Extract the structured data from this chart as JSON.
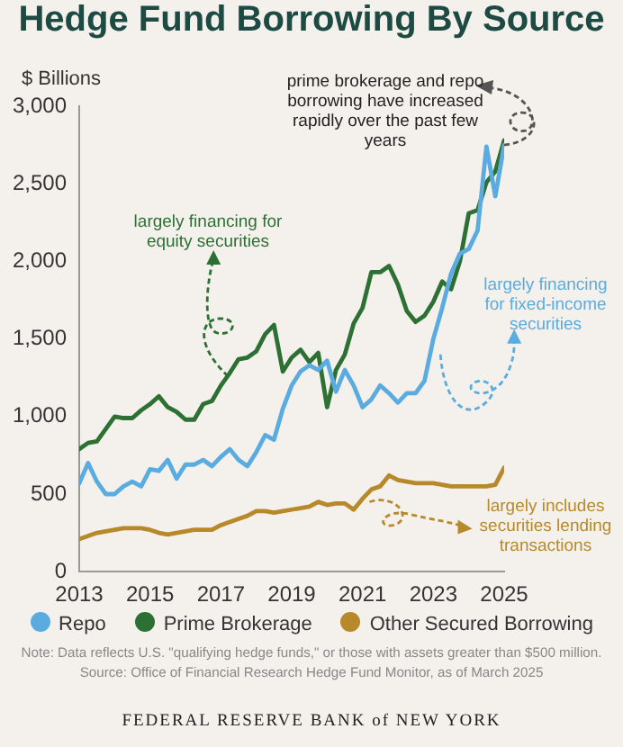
{
  "chart_data": {
    "type": "line",
    "title": "Hedge Fund Borrowing By Source",
    "ylabel": "$ Billions",
    "x": [
      2013,
      2013.25,
      2013.5,
      2013.75,
      2014,
      2014.25,
      2014.5,
      2014.75,
      2015,
      2015.25,
      2015.5,
      2015.75,
      2016,
      2016.25,
      2016.5,
      2016.75,
      2017,
      2017.25,
      2017.5,
      2017.75,
      2018,
      2018.25,
      2018.5,
      2018.75,
      2019,
      2019.25,
      2019.5,
      2019.75,
      2020,
      2020.25,
      2020.5,
      2020.75,
      2021,
      2021.25,
      2021.5,
      2021.75,
      2022,
      2022.25,
      2022.5,
      2022.75,
      2023,
      2023.25,
      2023.5,
      2023.75,
      2024,
      2024.25,
      2024.5,
      2024.75,
      2025
    ],
    "series": [
      {
        "name": "Repo",
        "color": "#5aabe0",
        "values": [
          570,
          700,
          580,
          500,
          500,
          550,
          580,
          550,
          660,
          650,
          720,
          600,
          690,
          690,
          720,
          680,
          740,
          790,
          720,
          680,
          770,
          880,
          850,
          1050,
          1200,
          1290,
          1330,
          1300,
          1360,
          1160,
          1300,
          1200,
          1060,
          1110,
          1200,
          1150,
          1090,
          1150,
          1150,
          1230,
          1500,
          1700,
          1920,
          2050,
          2080,
          2200,
          2740,
          2420,
          2750
        ]
      },
      {
        "name": "Prime Brokerage",
        "color": "#2d7034",
        "values": [
          790,
          830,
          840,
          920,
          1000,
          990,
          990,
          1040,
          1080,
          1130,
          1060,
          1030,
          980,
          980,
          1080,
          1100,
          1200,
          1280,
          1370,
          1380,
          1420,
          1530,
          1590,
          1290,
          1380,
          1430,
          1350,
          1410,
          1060,
          1300,
          1400,
          1600,
          1700,
          1930,
          1930,
          1970,
          1850,
          1680,
          1610,
          1650,
          1740,
          1870,
          1820,
          2000,
          2310,
          2330,
          2510,
          2580,
          2780
        ]
      },
      {
        "name": "Other Secured Borrowing",
        "color": "#b8892a",
        "values": [
          210,
          230,
          250,
          260,
          270,
          280,
          280,
          280,
          270,
          250,
          240,
          250,
          260,
          270,
          270,
          270,
          300,
          320,
          340,
          360,
          390,
          390,
          380,
          390,
          400,
          410,
          420,
          450,
          430,
          440,
          440,
          400,
          470,
          530,
          550,
          620,
          590,
          580,
          570,
          570,
          570,
          560,
          550,
          550,
          550,
          550,
          550,
          560,
          670
        ]
      }
    ],
    "xlim": [
      2013,
      2025
    ],
    "xticks": [
      2013,
      2015,
      2017,
      2019,
      2021,
      2023,
      2025
    ],
    "ylim": [
      0,
      3000
    ],
    "yticks": [
      {
        "value": 0,
        "label": "0"
      },
      {
        "value": 500,
        "label": "500"
      },
      {
        "value": 1000,
        "label": "1,000"
      },
      {
        "value": 1500,
        "label": "1,500"
      },
      {
        "value": 2000,
        "label": "2,000"
      },
      {
        "value": 2500,
        "label": "2,500"
      },
      {
        "value": 3000,
        "label": "3,000"
      }
    ],
    "grid": false,
    "legend": "bottom",
    "marker": "none",
    "line_style": "solid",
    "annotations": [
      {
        "text": "largely financing for equity securities",
        "x": 2017.2,
        "y": 1260
      },
      {
        "text": "largely financing for fixed-income securities",
        "x": 2023.2,
        "y": 1400
      },
      {
        "text": "largely includes securities lending transactions",
        "x": 2021.2,
        "y": 450
      },
      {
        "text": "prime brokerage and repo borrowing have increased rapidly over the past few years",
        "x": 2025,
        "y": 2750
      },
      "Note: Data reflects U.S. \"qualifying hedge funds,\" or those with assets greater than $500 million.",
      "Source: Office of Financial Research Hedge Fund Monitor, as of March 2025",
      "FEDERAL RESERVE BANK of NEW YORK"
    ]
  }
}
